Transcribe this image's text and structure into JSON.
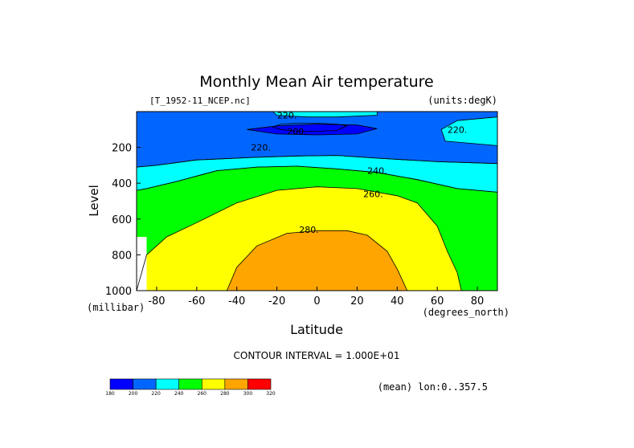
{
  "chart_data": {
    "type": "contour",
    "title": "Monthly Mean Air temperature",
    "file_label": "[T_1952-11_NCEP.nc]",
    "units_label": "(units:degK)",
    "xlabel": "Latitude",
    "xunits": "(degrees_north)",
    "ylabel": "Level",
    "yunits": "(millibar)",
    "xlim": [
      -90,
      90
    ],
    "ylim": [
      1000,
      0
    ],
    "x_ticks": [
      -80,
      -60,
      -40,
      -20,
      0,
      20,
      40,
      60,
      80
    ],
    "y_ticks": [
      200,
      400,
      600,
      800,
      1000
    ],
    "contour_interval_text": "CONTOUR INTERVAL = 1.000E+01",
    "mean_note": "(mean) lon:0..357.5",
    "contour_labels": [
      {
        "text": "220.",
        "x": -15,
        "y": 20
      },
      {
        "text": "200.",
        "x": -10,
        "y": 110
      },
      {
        "text": "220.",
        "x": 70,
        "y": 100
      },
      {
        "text": "220.",
        "x": -28,
        "y": 200
      },
      {
        "text": "240.",
        "x": 30,
        "y": 330
      },
      {
        "text": "260.",
        "x": 28,
        "y": 460
      },
      {
        "text": "280.",
        "x": -4,
        "y": 660
      }
    ],
    "colorbar": {
      "levels": [
        180,
        200,
        220,
        240,
        260,
        280,
        300,
        320
      ],
      "colors": [
        "#0000ff",
        "#0066ff",
        "#00ffff",
        "#00ff00",
        "#ffff00",
        "#ffa500",
        "#ff0000"
      ]
    },
    "bands": [
      {
        "level": 200,
        "color": "#0000ff",
        "points": [
          [
            -18,
            70
          ],
          [
            -10,
            65
          ],
          [
            0,
            65
          ],
          [
            10,
            70
          ],
          [
            15,
            80
          ],
          [
            10,
            105
          ],
          [
            0,
            110
          ],
          [
            -10,
            110
          ],
          [
            -18,
            100
          ],
          [
            -22,
            85
          ]
        ]
      },
      {
        "level": 220,
        "color": "#0066ff",
        "points": [
          [
            -90,
            0
          ],
          [
            90,
            0
          ],
          [
            90,
            30
          ],
          [
            70,
            50
          ],
          [
            62,
            100
          ],
          [
            64,
            165
          ],
          [
            90,
            190
          ],
          [
            90,
            290
          ],
          [
            60,
            280
          ],
          [
            30,
            260
          ],
          [
            10,
            245
          ],
          [
            -10,
            248
          ],
          [
            -30,
            255
          ],
          [
            -60,
            270
          ],
          [
            -80,
            300
          ],
          [
            -90,
            310
          ]
        ]
      },
      {
        "level": 240,
        "color": "#00ffff",
        "points": [
          [
            -22,
            0
          ],
          [
            30,
            0
          ],
          [
            30,
            20
          ],
          [
            10,
            30
          ],
          [
            -5,
            30
          ],
          [
            -20,
            20
          ]
        ]
      },
      {
        "level": 240,
        "color": "#00ffff",
        "points": [
          [
            -90,
            310
          ],
          [
            -80,
            300
          ],
          [
            -60,
            270
          ],
          [
            -30,
            255
          ],
          [
            -10,
            248
          ],
          [
            10,
            245
          ],
          [
            30,
            260
          ],
          [
            60,
            280
          ],
          [
            90,
            290
          ],
          [
            90,
            450
          ],
          [
            70,
            430
          ],
          [
            50,
            380
          ],
          [
            30,
            340
          ],
          [
            10,
            320
          ],
          [
            -10,
            305
          ],
          [
            -30,
            310
          ],
          [
            -50,
            330
          ],
          [
            -70,
            390
          ],
          [
            -85,
            430
          ],
          [
            -90,
            440
          ]
        ]
      },
      {
        "level": 240,
        "color": "#0000ff",
        "points": [
          [
            -35,
            100
          ],
          [
            -20,
            80
          ],
          [
            0,
            70
          ],
          [
            20,
            75
          ],
          [
            30,
            95
          ],
          [
            20,
            125
          ],
          [
            0,
            130
          ],
          [
            -20,
            125
          ]
        ]
      },
      {
        "level": 260,
        "color": "#00ff00",
        "points": [
          [
            -90,
            440
          ],
          [
            -85,
            430
          ],
          [
            -70,
            390
          ],
          [
            -50,
            330
          ],
          [
            -30,
            310
          ],
          [
            -10,
            305
          ],
          [
            10,
            320
          ],
          [
            30,
            340
          ],
          [
            50,
            380
          ],
          [
            70,
            430
          ],
          [
            90,
            450
          ],
          [
            90,
            1000
          ],
          [
            -90,
            1000
          ]
        ]
      },
      {
        "level": 270,
        "color": "#ffff00",
        "points": [
          [
            -90,
            1000
          ],
          [
            -85,
            800
          ],
          [
            -75,
            700
          ],
          [
            -60,
            620
          ],
          [
            -40,
            510
          ],
          [
            -20,
            440
          ],
          [
            0,
            420
          ],
          [
            20,
            430
          ],
          [
            40,
            470
          ],
          [
            50,
            510
          ],
          [
            60,
            640
          ],
          [
            65,
            780
          ],
          [
            70,
            900
          ],
          [
            72,
            1000
          ]
        ]
      },
      {
        "level": 290,
        "color": "#ffa500",
        "points": [
          [
            -45,
            1000
          ],
          [
            -40,
            870
          ],
          [
            -30,
            750
          ],
          [
            -15,
            680
          ],
          [
            0,
            665
          ],
          [
            15,
            665
          ],
          [
            25,
            690
          ],
          [
            35,
            780
          ],
          [
            40,
            880
          ],
          [
            45,
            1000
          ]
        ]
      }
    ],
    "missing_patch": {
      "points": [
        [
          -90,
          700
        ],
        [
          -85,
          700
        ],
        [
          -85,
          1000
        ],
        [
          -90,
          1000
        ]
      ],
      "color": "#ffffff"
    }
  }
}
